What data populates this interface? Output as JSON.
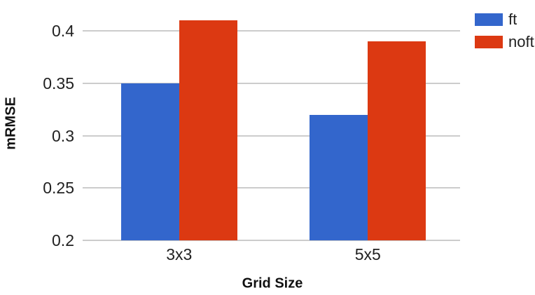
{
  "chart_data": {
    "type": "bar",
    "title": "",
    "xlabel": "Grid Size",
    "ylabel": "mRMSE",
    "categories": [
      "3x3",
      "5x5"
    ],
    "series": [
      {
        "name": "ft",
        "color": "#3366CC",
        "values": [
          0.35,
          0.32
        ]
      },
      {
        "name": "noft",
        "color": "#DC3912",
        "values": [
          0.41,
          0.39
        ]
      }
    ],
    "y_ticks": [
      "0.2",
      "0.25",
      "0.3",
      "0.35",
      "0.4"
    ],
    "ylim": [
      0.2,
      0.42
    ],
    "grid": true,
    "legend_position": "right",
    "colors": {
      "gridline": "#CCCCCC",
      "tick_text": "#212121",
      "title_text": "#111111",
      "background": "#FFFFFF"
    }
  }
}
